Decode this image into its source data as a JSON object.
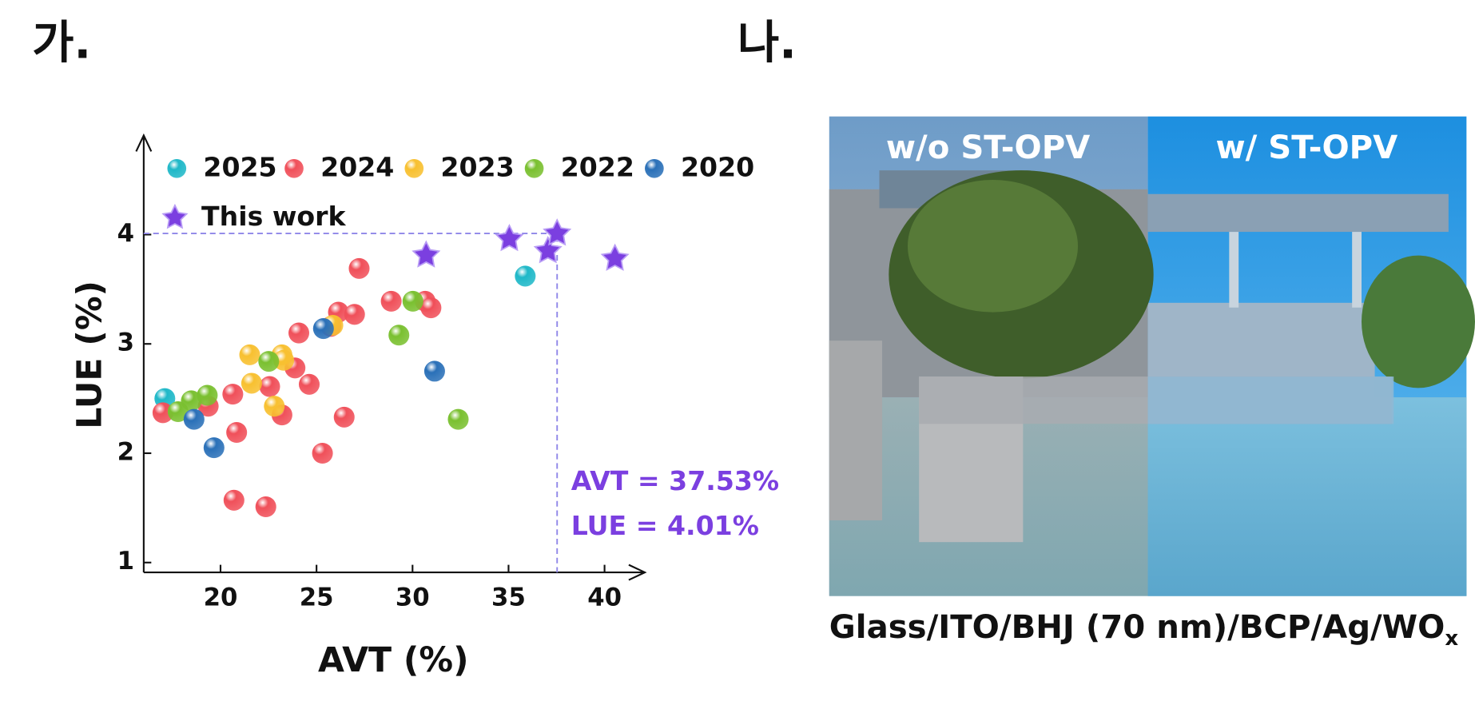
{
  "panels": {
    "a": "가.",
    "b": "나."
  },
  "chart_data": {
    "type": "scatter",
    "xlabel": "AVT (%)",
    "ylabel": "LUE (%)",
    "xlim": [
      16,
      42
    ],
    "ylim": [
      0.91,
      4.89
    ],
    "xticks": [
      20,
      25,
      30,
      35,
      40
    ],
    "yticks": [
      1,
      2,
      3,
      4
    ],
    "annotations": [
      "AVT = 37.53%",
      "LUE = 4.01%"
    ],
    "annotation_color": "#7b3fe0",
    "series": [
      {
        "name": "2025",
        "color": "#1fb8c8",
        "marker": "sphere",
        "x": [
          17.1,
          35.87
        ],
        "values": [
          2.5,
          3.62
        ]
      },
      {
        "name": "2024",
        "color": "#f0505a",
        "marker": "sphere",
        "x": [
          17.0,
          19.36,
          20.64,
          20.84,
          20.7,
          22.36,
          22.56,
          23.2,
          24.08,
          23.88,
          24.62,
          25.31,
          26.44,
          26.14,
          26.98,
          27.22,
          28.89,
          30.66,
          30.96,
          25.75
        ],
        "values": [
          2.37,
          2.43,
          2.54,
          2.19,
          1.57,
          1.51,
          2.61,
          2.35,
          3.1,
          2.78,
          2.63,
          2.0,
          2.33,
          3.29,
          3.27,
          3.69,
          3.39,
          3.39,
          3.33,
          3.16
        ]
      },
      {
        "name": "2023",
        "color": "#f8c030",
        "marker": "sphere",
        "x": [
          21.52,
          21.62,
          22.8,
          23.2,
          23.29,
          25.85
        ],
        "values": [
          2.9,
          2.64,
          2.43,
          2.9,
          2.85,
          3.17
        ]
      },
      {
        "name": "2022",
        "color": "#7ac030",
        "marker": "sphere",
        "x": [
          17.79,
          18.48,
          19.31,
          22.51,
          29.29,
          30.02,
          32.38
        ],
        "values": [
          2.38,
          2.48,
          2.53,
          2.84,
          3.08,
          3.39,
          2.31
        ]
      },
      {
        "name": "2020",
        "color": "#2a70b8",
        "marker": "sphere",
        "x": [
          18.62,
          19.66,
          25.36,
          31.15
        ],
        "values": [
          2.31,
          2.05,
          3.14,
          2.75
        ]
      },
      {
        "name": "This work",
        "color": "#7b3fe0",
        "marker": "star",
        "x": [
          30.71,
          35.04,
          37.05,
          37.53,
          40.54
        ],
        "values": [
          3.81,
          3.96,
          3.85,
          4.01,
          3.78
        ]
      }
    ]
  },
  "photo": {
    "left_label": "w/o ST-OPV",
    "right_label": "w/ ST-OPV",
    "caption": {
      "text": "Glass/ITO/BHJ (70 nm)/BCP/Ag/WO",
      "subscript": "x"
    }
  }
}
